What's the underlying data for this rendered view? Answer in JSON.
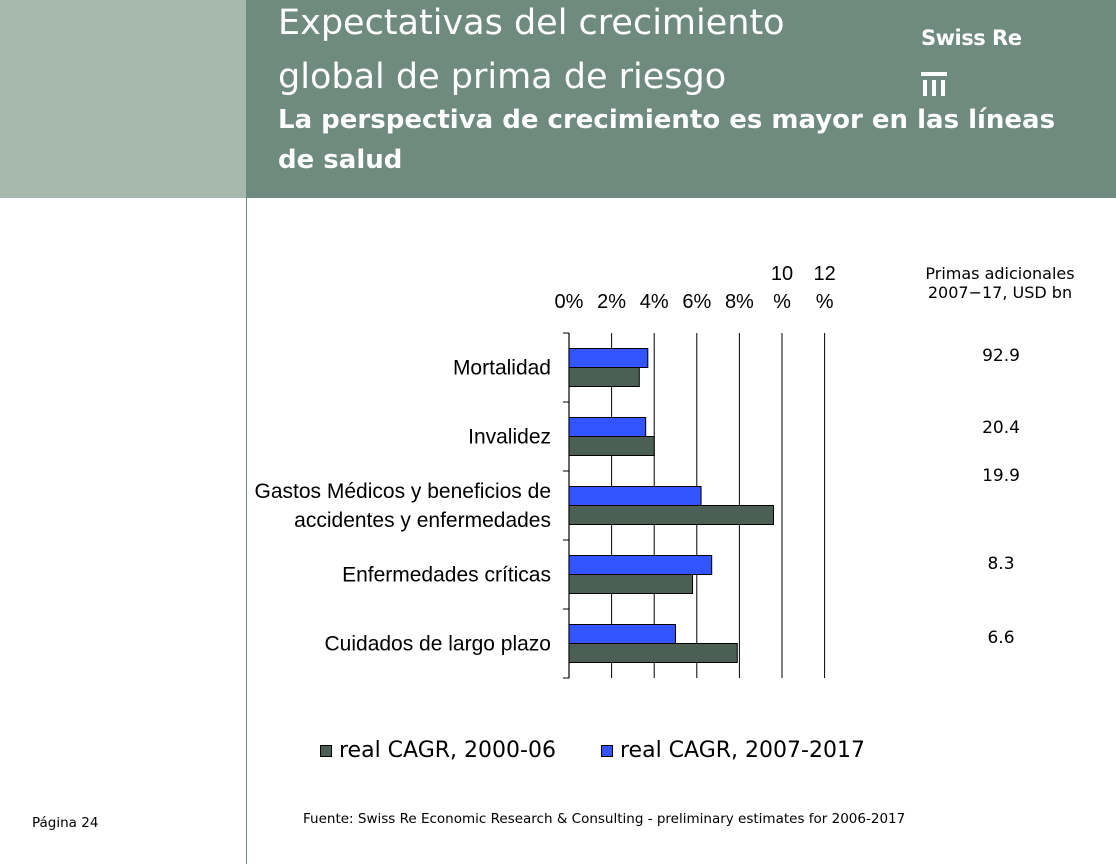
{
  "header": {
    "title": "Expectativas del crecimiento global de prima de riesgo",
    "subtitle": "La perspectiva de crecimiento es mayor en las líneas de salud",
    "brand": "Swiss Re",
    "accent_color": "#6f8a7e",
    "left_band_color": "#a7b8ad"
  },
  "chart_data": {
    "type": "bar",
    "orientation": "horizontal",
    "categories": [
      "Mortalidad",
      "Invalidez",
      "Gastos Médicos y beneficios de accidentes y enfermedades",
      "Enfermedades críticas",
      "Cuidados de largo plazo"
    ],
    "category_lines": [
      [
        "Mortalidad"
      ],
      [
        "Invalidez"
      ],
      [
        "Gastos Médicos y beneficios de",
        "accidentes y enfermedades"
      ],
      [
        "Enfermedades críticas"
      ],
      [
        "Cuidados de largo plazo"
      ]
    ],
    "series": [
      {
        "name": "real CAGR, 2007-2017",
        "color": "#3355ff",
        "values": [
          3.7,
          3.6,
          6.2,
          6.7,
          5.0
        ]
      },
      {
        "name": "real CAGR, 2000-06",
        "color": "#4b5f55",
        "values": [
          3.3,
          4.0,
          9.6,
          5.8,
          7.9
        ]
      }
    ],
    "xlim": [
      0,
      12
    ],
    "x_ticks": [
      0,
      2,
      4,
      6,
      8,
      10,
      12
    ],
    "x_tick_labels": [
      [
        "0%"
      ],
      [
        "2%"
      ],
      [
        "4%"
      ],
      [
        "6%"
      ],
      [
        "8%"
      ],
      [
        "10",
        "%"
      ],
      [
        "12",
        "%"
      ]
    ],
    "grid": "vertical",
    "legend_position": "bottom",
    "legend": [
      "real CAGR, 2000-06",
      "real CAGR, 2007-2017"
    ]
  },
  "additional_premiums": {
    "header_line1": "Primas adicionales",
    "header_line2": "2007−17,  USD bn",
    "values": [
      "92.9",
      "20.4",
      "19.9",
      "8.3",
      "6.6"
    ]
  },
  "footer": {
    "source": "Fuente: Swiss Re Economic Research & Consulting - preliminary estimates for 2006-2017",
    "page": "Página 24"
  }
}
